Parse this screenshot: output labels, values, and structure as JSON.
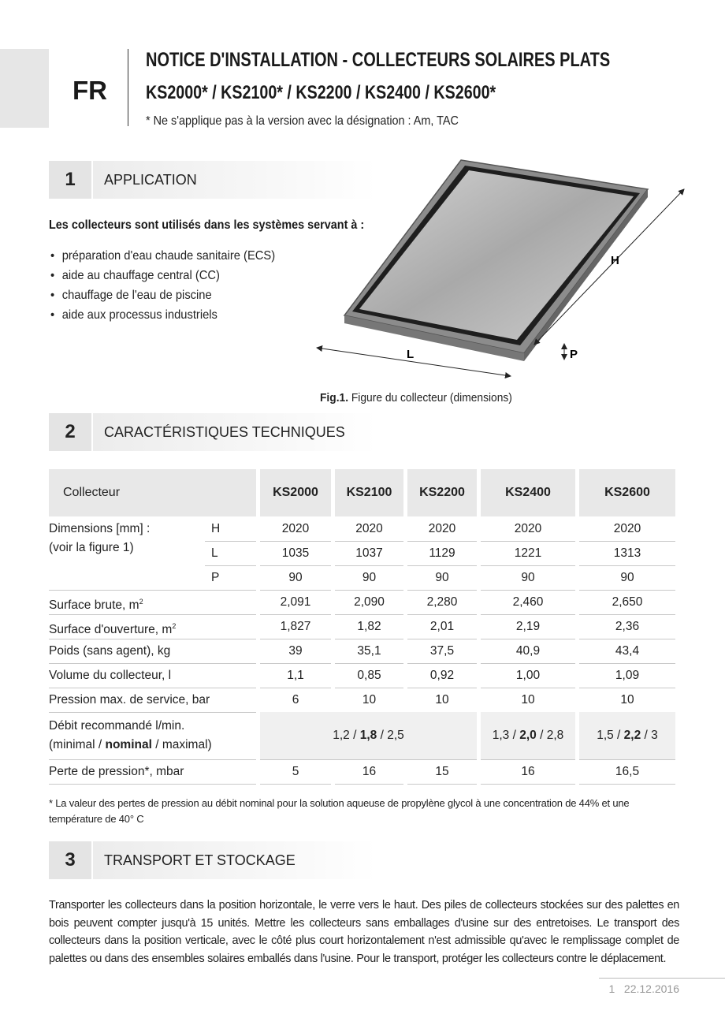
{
  "header": {
    "lang": "FR",
    "title": "NOTICE D'INSTALLATION - COLLECTEURS SOLAIRES PLATS",
    "models": "KS2000* / KS2100* / KS2200 / KS2400 / KS2600*",
    "note": "* Ne s'applique pas à la version avec la désignation : Am, TAC"
  },
  "sections": [
    {
      "number": "1",
      "title": "APPLICATION",
      "intro": "Les collecteurs sont utilisés dans les systèmes servant à :",
      "bullets": [
        "préparation d'eau chaude sanitaire (ECS)",
        "aide au chauffage central (CC)",
        "chauffage de l'eau de piscine",
        "aide aux processus industriels"
      ]
    },
    {
      "number": "2",
      "title": "CARACTÉRISTIQUES TECHNIQUES"
    },
    {
      "number": "3",
      "title": "TRANSPORT ET STOCKAGE",
      "text": "Transporter les collecteurs dans la position horizontale, le verre vers le haut. Des piles de collecteurs stockées sur des palettes en bois peuvent compter jusqu'à 15 unités. Mettre les collecteurs sans emballages d'usine sur des entretoises. Le transport des collecteurs dans la position verticale, avec le côté plus court horizontalement n'est admissible qu'avec le remplissage complet de palettes ou dans des ensembles solaires emballés dans l'usine. Pour le transport, protéger les collecteurs contre le déplacement."
    }
  ],
  "figure": {
    "labels": {
      "H": "H",
      "L": "L",
      "P": "P"
    },
    "caption_label": "Fig.1.",
    "caption": "Figure du collecteur (dimensions)"
  },
  "table": {
    "header": [
      "Collecteur",
      "KS2000",
      "KS2100",
      "KS2200",
      "KS2400",
      "KS2600"
    ],
    "dimensions": {
      "label": [
        "Dimensions [mm] :",
        "(voir la figure 1)"
      ],
      "rows": [
        {
          "key": "H",
          "values": [
            "2020",
            "2020",
            "2020",
            "2020",
            "2020"
          ]
        },
        {
          "key": "L",
          "values": [
            "1035",
            "1037",
            "1129",
            "1221",
            "1313"
          ]
        },
        {
          "key": "P",
          "values": [
            "90",
            "90",
            "90",
            "90",
            "90"
          ]
        }
      ]
    },
    "rows": [
      {
        "label": "Surface brute, m",
        "sup": "2",
        "values": [
          "2,091",
          "2,090",
          "2,280",
          "2,460",
          "2,650"
        ]
      },
      {
        "label": "Surface d'ouverture, m",
        "sup": "2",
        "values": [
          "1,827",
          "1,82",
          "2,01",
          "2,19",
          "2,36"
        ]
      },
      {
        "label": "Poids (sans agent), kg",
        "values": [
          "39",
          "35,1",
          "37,5",
          "40,9",
          "43,4"
        ]
      },
      {
        "label": "Volume du collecteur, l",
        "values": [
          "1,1",
          "0,85",
          "0,92",
          "1,00",
          "1,09"
        ]
      },
      {
        "label": "Pression max. de service, bar",
        "values": [
          "6",
          "10",
          "10",
          "10",
          "10"
        ]
      },
      {
        "label_lines": [
          "Débit recommandé l/min.",
          [
            "(minimal / ",
            "nominal",
            " / maximal)"
          ]
        ],
        "flow": [
          [
            "1,2 / ",
            "1,8",
            " / 2,5"
          ],
          [
            "1,3 / ",
            "2,0",
            " / 2,8"
          ],
          [
            "1,5 / ",
            "2,2",
            " / 3"
          ]
        ]
      },
      {
        "label": "Perte de pression*, mbar",
        "values": [
          "5",
          "16",
          "15",
          "16",
          "16,5"
        ]
      }
    ],
    "footnote": "* La valeur des pertes de pression au débit nominal pour la solution aqueuse de propylène glycol à une concentration de 44% et une température de 40° C"
  },
  "footer": {
    "page": "1",
    "date": "22.12.2016"
  }
}
